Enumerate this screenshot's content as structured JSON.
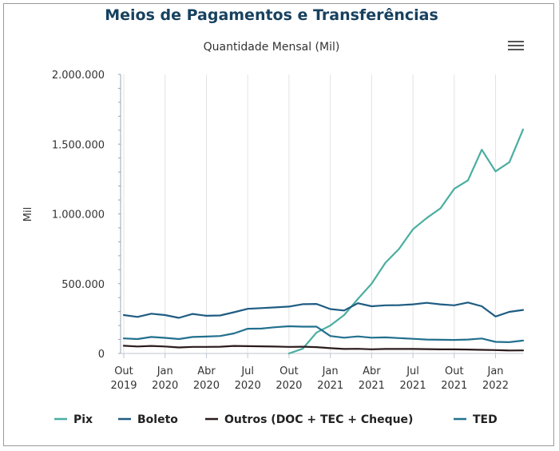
{
  "header": {
    "title": "Meios de Pagamentos e Transferências",
    "subtitle": "Quantidade Mensal (Mil)"
  },
  "chart_data": {
    "type": "line",
    "title": "Meios de Pagamentos e Transferências",
    "subtitle": "Quantidade Mensal (Mil)",
    "ylabel": "Mil",
    "xlabel": "",
    "ylim": [
      0,
      2000000
    ],
    "yticks": [
      0,
      500000,
      1000000,
      1500000,
      2000000
    ],
    "ytick_labels": [
      "0",
      "500.000",
      "1.000.000",
      "1.500.000",
      "2.000.000"
    ],
    "x": [
      "2019-10",
      "2019-11",
      "2019-12",
      "2020-01",
      "2020-02",
      "2020-03",
      "2020-04",
      "2020-05",
      "2020-06",
      "2020-07",
      "2020-08",
      "2020-09",
      "2020-10",
      "2020-11",
      "2020-12",
      "2021-01",
      "2021-02",
      "2021-03",
      "2021-04",
      "2021-05",
      "2021-06",
      "2021-07",
      "2021-08",
      "2021-09",
      "2021-10",
      "2021-11",
      "2021-12",
      "2022-01",
      "2022-02",
      "2022-03"
    ],
    "xtick_labels": [
      {
        "index": 0,
        "line1": "Out",
        "line2": "2019"
      },
      {
        "index": 3,
        "line1": "Jan",
        "line2": "2020"
      },
      {
        "index": 6,
        "line1": "Abr",
        "line2": "2020"
      },
      {
        "index": 9,
        "line1": "Jul",
        "line2": "2020"
      },
      {
        "index": 12,
        "line1": "Out",
        "line2": "2020"
      },
      {
        "index": 15,
        "line1": "Jan",
        "line2": "2021"
      },
      {
        "index": 18,
        "line1": "Abr",
        "line2": "2021"
      },
      {
        "index": 21,
        "line1": "Jul",
        "line2": "2021"
      },
      {
        "index": 24,
        "line1": "Out",
        "line2": "2021"
      },
      {
        "index": 27,
        "line1": "Jan",
        "line2": "2022"
      }
    ],
    "grid": "vertical",
    "legend_position": "bottom",
    "series": [
      {
        "name": "Pix",
        "color": "#4aaea0",
        "values": [
          null,
          null,
          null,
          null,
          null,
          null,
          null,
          null,
          null,
          null,
          null,
          null,
          0,
          34000,
          150000,
          200000,
          275000,
          390000,
          500000,
          650000,
          750000,
          890000,
          970000,
          1040000,
          1180000,
          1240000,
          1460000,
          1305000,
          1370000,
          1605000
        ]
      },
      {
        "name": "Boleto",
        "color": "#1e5c82",
        "values": [
          275000,
          262000,
          285000,
          275000,
          255000,
          283000,
          270000,
          272000,
          295000,
          320000,
          325000,
          330000,
          336000,
          353000,
          355000,
          318000,
          308000,
          360000,
          338000,
          345000,
          346000,
          352000,
          363000,
          352000,
          345000,
          365000,
          338000,
          265000,
          298000,
          312000
        ]
      },
      {
        "name": "Outros (DOC + TEC + Cheque)",
        "color": "#2b1b1d",
        "values": [
          55000,
          50000,
          54000,
          50000,
          43000,
          47000,
          47000,
          48000,
          54000,
          52000,
          51000,
          49000,
          47000,
          48000,
          45000,
          38000,
          32000,
          33000,
          30000,
          32000,
          32000,
          32000,
          31000,
          29000,
          29000,
          28000,
          26000,
          24000,
          21000,
          22000
        ]
      },
      {
        "name": "TED",
        "color": "#22708e",
        "values": [
          108000,
          103000,
          118000,
          112000,
          103000,
          118000,
          121000,
          125000,
          143000,
          177000,
          178000,
          188000,
          195000,
          192000,
          192000,
          125000,
          113000,
          122000,
          113000,
          115000,
          110000,
          105000,
          100000,
          98000,
          97000,
          100000,
          107000,
          83000,
          81000,
          92000
        ]
      }
    ]
  }
}
